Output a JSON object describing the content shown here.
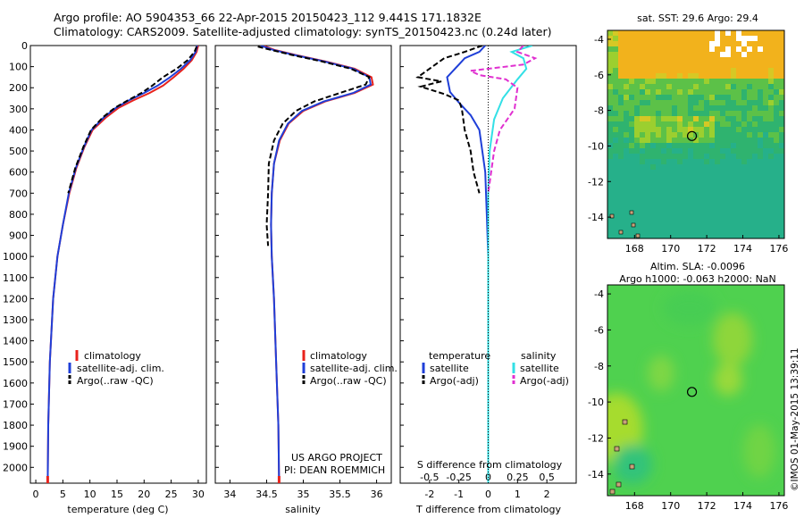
{
  "header": {
    "line1": "Argo profile: AO 5904353_66 22-Apr-2015 20150423_112 9.441S 171.1832E",
    "line2": "Climatology: CARS2009. Satellite-adjusted climatology: synTS_20150423.nc (0.24d later)"
  },
  "colors": {
    "climatology": "#e8221c",
    "satellite": "#1f3fd8",
    "argo": "#000000",
    "satellite_salinity": "#33e0e6",
    "argo_salinity": "#e030d0"
  },
  "chart_data": [
    {
      "type": "line",
      "id": "temperature",
      "xlabel": "temperature (deg C)",
      "ylabel": "",
      "xlim": [
        -1,
        31.5
      ],
      "ylim": [
        2075,
        0
      ],
      "xticks": [
        0,
        5,
        10,
        15,
        20,
        25,
        30
      ],
      "yticks": [
        0,
        100,
        200,
        300,
        400,
        500,
        600,
        700,
        800,
        900,
        1000,
        1100,
        1200,
        1300,
        1400,
        1500,
        1600,
        1700,
        1800,
        1900,
        2000
      ],
      "legend": {
        "placement": "lower-center",
        "entries": [
          "climatology",
          "satellite-adj. clim.",
          "Argo(..raw -QC)"
        ]
      },
      "series": [
        {
          "name": "climatology",
          "style": "solid",
          "color_key": "climatology",
          "x": [
            30,
            29.7,
            28.8,
            27.3,
            25.5,
            23.5,
            21.0,
            18.0,
            15.3,
            13.0,
            10.5,
            9.0,
            7.5,
            6.2,
            5.0,
            4.0,
            3.2,
            2.6,
            2.3,
            2.2
          ],
          "y": [
            0,
            30,
            70,
            110,
            150,
            190,
            225,
            260,
            295,
            340,
            400,
            480,
            580,
            700,
            850,
            1000,
            1200,
            1500,
            1800,
            2075
          ]
        },
        {
          "name": "satellite-adj. clim.",
          "style": "solid",
          "color_key": "satellite",
          "x": [
            29.8,
            29.5,
            28.5,
            26.8,
            24.8,
            22.5,
            20.0,
            17.2,
            14.8,
            12.6,
            10.3,
            8.9,
            7.4,
            6.1,
            5.0,
            4.0,
            3.2,
            2.6,
            2.3,
            2.2
          ],
          "y": [
            0,
            30,
            70,
            110,
            150,
            190,
            225,
            260,
            295,
            340,
            400,
            480,
            580,
            700,
            850,
            1000,
            1200,
            1500,
            1800,
            2075
          ]
        },
        {
          "name": "Argo(..raw -QC)",
          "style": "dash",
          "color_key": "argo",
          "x": [
            29.7,
            29.3,
            28.0,
            26.0,
            23.5,
            21.5,
            19.5,
            17.0,
            14.6,
            12.4,
            10.2,
            8.8,
            7.3,
            6.0
          ],
          "y": [
            5,
            30,
            70,
            110,
            150,
            190,
            225,
            260,
            295,
            340,
            400,
            480,
            580,
            700
          ]
        }
      ]
    },
    {
      "type": "line",
      "id": "salinity",
      "xlabel": "salinity",
      "ylabel": "",
      "xlim": [
        33.8,
        36.2
      ],
      "ylim": [
        2075,
        0
      ],
      "xticks": [
        34,
        34.5,
        35,
        35.5,
        36
      ],
      "legend": {
        "placement": "lower-center",
        "entries": [
          "climatology",
          "satellite-adj. clim.",
          "Argo(..raw -QC)"
        ]
      },
      "annotations": [
        "US ARGO PROJECT",
        "PI: DEAN ROEMMICH"
      ],
      "series": [
        {
          "name": "climatology",
          "style": "solid",
          "color_key": "climatology",
          "x": [
            34.45,
            34.6,
            34.9,
            35.3,
            35.7,
            35.93,
            35.95,
            35.7,
            35.3,
            35.0,
            34.8,
            34.68,
            34.6,
            34.57,
            34.56,
            34.57,
            34.6,
            34.63,
            34.66,
            34.67
          ],
          "y": [
            0,
            20,
            45,
            75,
            110,
            150,
            185,
            225,
            265,
            310,
            370,
            450,
            560,
            700,
            850,
            1000,
            1200,
            1500,
            1800,
            2075
          ]
        },
        {
          "name": "satellite-adj. clim.",
          "style": "solid",
          "color_key": "satellite",
          "x": [
            34.42,
            34.58,
            34.88,
            35.28,
            35.68,
            35.9,
            35.92,
            35.68,
            35.28,
            34.98,
            34.79,
            34.67,
            34.6,
            34.57,
            34.56,
            34.57,
            34.6,
            34.63,
            34.66,
            34.67
          ],
          "y": [
            0,
            20,
            45,
            75,
            110,
            150,
            185,
            225,
            265,
            310,
            370,
            450,
            560,
            700,
            850,
            1000,
            1200,
            1500,
            1800,
            2075
          ]
        },
        {
          "name": "Argo(..raw -QC)",
          "style": "dash",
          "color_key": "argo",
          "x": [
            34.38,
            34.55,
            34.85,
            35.25,
            35.65,
            35.9,
            35.85,
            35.5,
            35.15,
            34.9,
            34.72,
            34.6,
            34.53,
            34.52,
            34.5,
            34.52
          ],
          "y": [
            5,
            20,
            45,
            75,
            110,
            150,
            185,
            225,
            265,
            310,
            370,
            450,
            560,
            700,
            850,
            950
          ]
        }
      ]
    },
    {
      "type": "line",
      "id": "differences",
      "xlabel": "T difference from climatology",
      "top_axis_label": "S difference from climatology",
      "xlim": [
        -3,
        3
      ],
      "ylim": [
        2075,
        0
      ],
      "xticks": [
        -2,
        -1,
        0,
        1,
        2
      ],
      "top_ticks": [
        -0.5,
        -0.25,
        0,
        0.25,
        0.5
      ],
      "legend": {
        "placement": "lower-center",
        "group_titles": [
          "temperature",
          "salinity"
        ],
        "entries": [
          "satellite",
          "Argo(-adj)",
          "satellite",
          "Argo(-adj)"
        ]
      },
      "series": [
        {
          "name": "temperature satellite",
          "style": "solid",
          "color_key": "satellite",
          "x": [
            -0.1,
            -0.3,
            -0.8,
            -1.0,
            -1.4,
            -1.3,
            -1.0,
            -0.6,
            -0.3,
            -0.2,
            -0.1,
            -0.05,
            0,
            0,
            0,
            0
          ],
          "y": [
            0,
            30,
            60,
            90,
            150,
            220,
            270,
            330,
            400,
            500,
            600,
            800,
            1000,
            1400,
            1800,
            2075
          ]
        },
        {
          "name": "temperature Argo(-adj)",
          "style": "dash",
          "color_key": "argo",
          "x": [
            -0.2,
            -0.8,
            -1.5,
            -2.4,
            -1.6,
            -2.3,
            -1.5,
            -1.0,
            -0.9,
            -0.8,
            -0.6,
            -0.5,
            -0.3
          ],
          "y": [
            0,
            30,
            60,
            150,
            170,
            195,
            230,
            260,
            300,
            400,
            500,
            600,
            700
          ]
        },
        {
          "name": "salinity satellite",
          "style": "solid",
          "color_key": "satellite_salinity",
          "x": [
            1.5,
            0.8,
            1.2,
            1.3,
            1.0,
            0.5,
            0.2,
            0.05,
            0,
            0
          ],
          "y": [
            0,
            30,
            60,
            110,
            160,
            250,
            350,
            500,
            700,
            2075
          ]
        },
        {
          "name": "salinity Argo(-adj)",
          "style": "dash",
          "color_key": "argo_salinity",
          "x": [
            1.2,
            1.0,
            1.6,
            1.2,
            -0.6,
            -0.3,
            0.6,
            1.0,
            0.9,
            0.4,
            0.2,
            0.0
          ],
          "y": [
            0,
            30,
            60,
            90,
            120,
            140,
            160,
            200,
            300,
            400,
            500,
            700
          ]
        }
      ]
    },
    {
      "type": "heatmap",
      "id": "sst_map",
      "title": "sat. SST: 29.6  Argo: 29.4",
      "xlim": [
        166.5,
        176.3
      ],
      "ylim": [
        -15.2,
        -3.5
      ],
      "xticks": [
        168,
        170,
        172,
        174,
        176
      ],
      "yticks": [
        -4,
        -6,
        -8,
        -10,
        -12,
        -14
      ],
      "marker": {
        "lon": 171.18,
        "lat": -9.44
      }
    },
    {
      "type": "heatmap",
      "id": "sla_map",
      "title": "Altim. SLA: -0.0096",
      "subtitle": "Argo h1000: -0.063  h2000: NaN",
      "xlim": [
        166.5,
        176.3
      ],
      "ylim": [
        -15.2,
        -3.5
      ],
      "xticks": [
        168,
        170,
        172,
        174,
        176
      ],
      "yticks": [
        -4,
        -6,
        -8,
        -10,
        -12,
        -14
      ],
      "marker": {
        "lon": 171.18,
        "lat": -9.44
      }
    }
  ],
  "side_label": "©IMOS 01-May-2015 13:39:11"
}
